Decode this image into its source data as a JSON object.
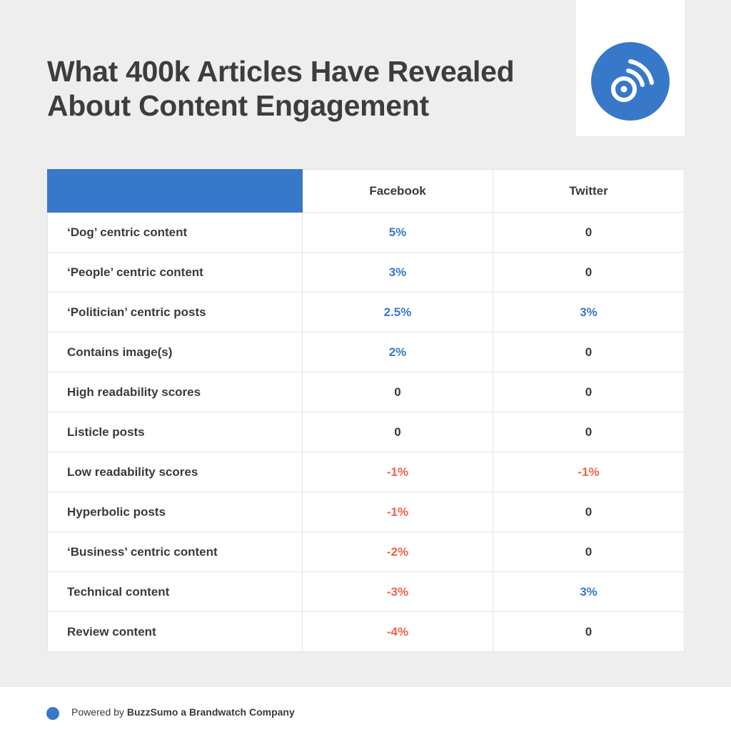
{
  "title": {
    "line1": "What 400k Articles Have Revealed",
    "line2": "About Content Engagement"
  },
  "logo": {
    "icon": "buzzsumo-rss-icon",
    "color": "#3878c8"
  },
  "colors": {
    "positive": "#3878c8",
    "negative": "#f0614a",
    "neutral": "#3a3a3a",
    "header": "#3878c8"
  },
  "chart_data": {
    "type": "table",
    "columns": [
      "",
      "Facebook",
      "Twitter"
    ],
    "rows": [
      {
        "label": "‘Dog’ centric content",
        "facebook": "5%",
        "twitter": "0"
      },
      {
        "label": "‘People’ centric content",
        "facebook": "3%",
        "twitter": "0"
      },
      {
        "label": "‘Politician’ centric posts",
        "facebook": "2.5%",
        "twitter": "3%"
      },
      {
        "label": "Contains image(s)",
        "facebook": "2%",
        "twitter": "0"
      },
      {
        "label": "High readability scores",
        "facebook": "0",
        "twitter": "0"
      },
      {
        "label": "Listicle posts",
        "facebook": "0",
        "twitter": "0"
      },
      {
        "label": "Low readability scores",
        "facebook": "-1%",
        "twitter": "-1%"
      },
      {
        "label": "Hyperbolic posts",
        "facebook": "-1%",
        "twitter": "0"
      },
      {
        "label": "‘Business’ centric content",
        "facebook": "-2%",
        "twitter": "0"
      },
      {
        "label": "Technical content",
        "facebook": "-3%",
        "twitter": "3%"
      },
      {
        "label": "Review content",
        "facebook": "-4%",
        "twitter": "0"
      }
    ]
  },
  "footer": {
    "prefix": "Powered by ",
    "brand": "BuzzSumo a Brandwatch Company"
  }
}
